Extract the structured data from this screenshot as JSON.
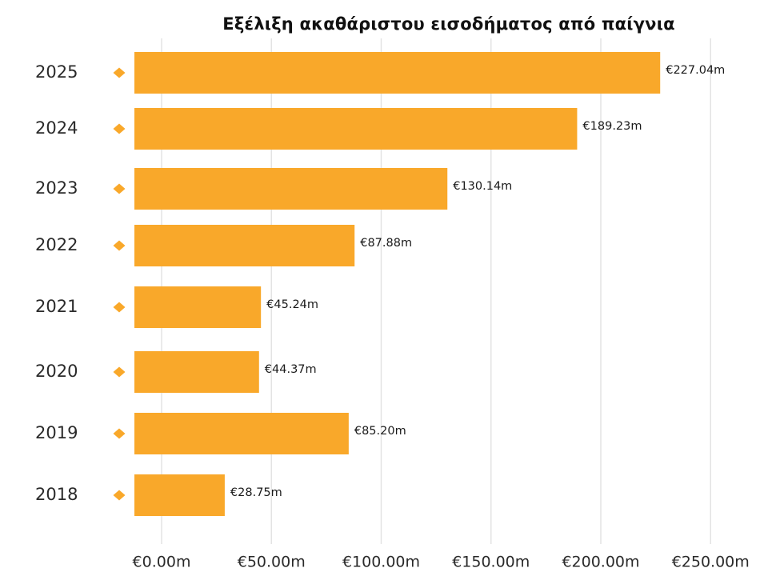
{
  "chart_data": {
    "type": "bar",
    "orientation": "horizontal",
    "title": "Εξέλιξη ακαθάριστου εισοδήματος από παίγνια",
    "categories": [
      "2025",
      "2024",
      "2023",
      "2022",
      "2021",
      "2020",
      "2019",
      "2018"
    ],
    "values": [
      227.04,
      189.23,
      130.14,
      87.88,
      45.24,
      44.37,
      85.2,
      28.75
    ],
    "value_labels": [
      "€227.04m",
      "€189.23m",
      "€130.14m",
      "€87.88m",
      "€45.24m",
      "€44.37m",
      "€85.20m",
      "€28.75m"
    ],
    "x_ticks": [
      0,
      50,
      100,
      150,
      200,
      250
    ],
    "x_tick_labels": [
      "€0.00m",
      "€50.00m",
      "€100.00m",
      "€150.00m",
      "€200.00m",
      "€250.00m"
    ],
    "xlim": [
      0,
      250
    ],
    "grid": true,
    "legend": "none",
    "colors": {
      "bar": "#F9A82A",
      "marker": "#F9A82A",
      "grid": "#e3e3e3",
      "axis_text": "#2a2a2a"
    }
  }
}
